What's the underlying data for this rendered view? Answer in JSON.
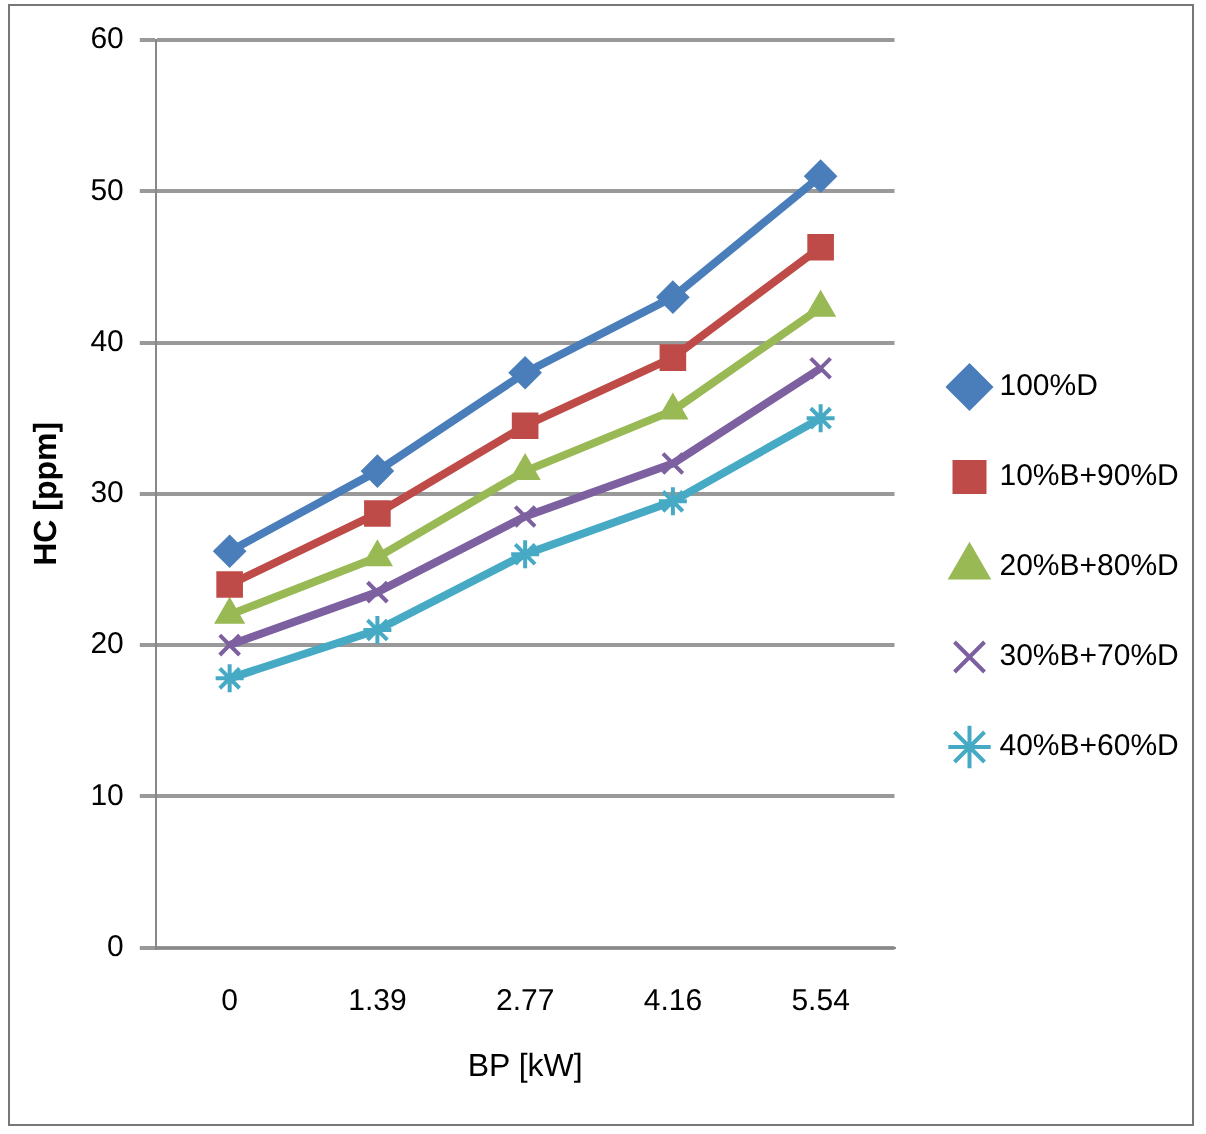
{
  "chart_data": {
    "type": "line",
    "xlabel": "BP [kW]",
    "ylabel": "HC [ppm]",
    "categories": [
      "0",
      "1.39",
      "2.77",
      "4.16",
      "5.54"
    ],
    "ylim": [
      0,
      60
    ],
    "yticks": [
      0,
      10,
      20,
      30,
      40,
      50,
      60
    ],
    "grid": "y",
    "legend": "right",
    "series": [
      {
        "name": "100%D",
        "color": "#4a7ebb",
        "marker": "diamond",
        "values": [
          26.2,
          31.5,
          38,
          43,
          51
        ]
      },
      {
        "name": "10%B+90%D",
        "color": "#be4b48",
        "marker": "square",
        "values": [
          24,
          28.7,
          34.5,
          39,
          46.3
        ]
      },
      {
        "name": "20%B+80%D",
        "color": "#98b954",
        "marker": "triangle",
        "values": [
          22,
          25.8,
          31.5,
          35.5,
          42.3
        ]
      },
      {
        "name": "30%B+70%D",
        "color": "#7d60a0",
        "marker": "cross",
        "values": [
          20,
          23.5,
          28.5,
          32,
          38.3
        ]
      },
      {
        "name": "40%B+60%D",
        "color": "#46aac5",
        "marker": "cross",
        "values": [
          17.8,
          21,
          26,
          29.5,
          35
        ]
      }
    ]
  }
}
